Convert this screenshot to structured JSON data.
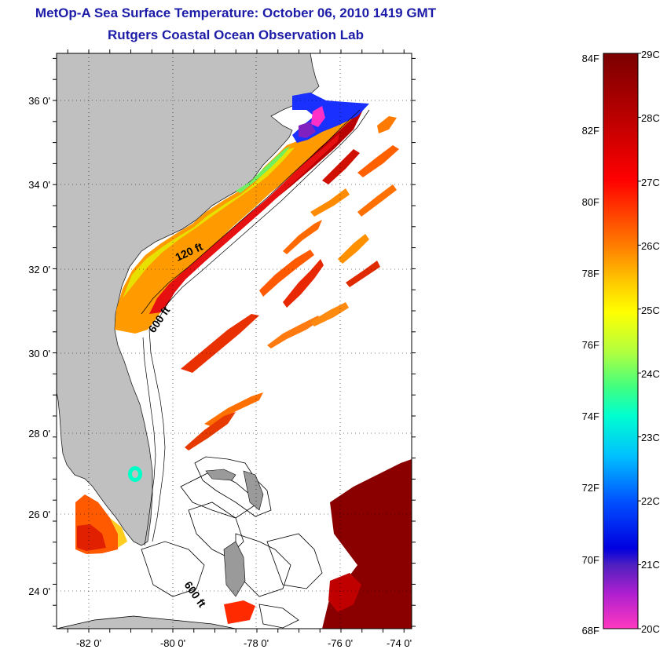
{
  "header": {
    "title": "MetOp-A Sea Surface Temperature:  October 06, 2010 1419 GMT",
    "subtitle": "Rutgers Coastal Ocean Observation Lab"
  },
  "map": {
    "lon_labels": [
      "-82 0'",
      "-80 0'",
      "-78 0'",
      "-76 0'",
      "-74 0'"
    ],
    "lat_labels": [
      "36 0'",
      "34 0'",
      "32 0'",
      "30 0'",
      "28 0'",
      "26 0'",
      "24 0'"
    ],
    "contour_labels": [
      "120 ft",
      "600 ft",
      "600 ft"
    ],
    "colors": {
      "land": "#c0c0c0",
      "ocean_missing": "#ffffff"
    }
  },
  "colorbar": {
    "fahrenheit_labels": [
      "84F",
      "82F",
      "80F",
      "78F",
      "76F",
      "74F",
      "72F",
      "70F",
      "68F"
    ],
    "celsius_labels": [
      "29C",
      "28C",
      "27C",
      "26C",
      "25C",
      "24C",
      "23C",
      "22C",
      "21C",
      "20C"
    ],
    "gradient_colors": [
      "#7a0000",
      "#b00000",
      "#ff0000",
      "#ff6a00",
      "#ffcc00",
      "#ffff00",
      "#9cff4a",
      "#00ffc0",
      "#00c8ff",
      "#0060ff",
      "#0000ff",
      "#6020c0",
      "#c020d0",
      "#ff30c0"
    ]
  }
}
